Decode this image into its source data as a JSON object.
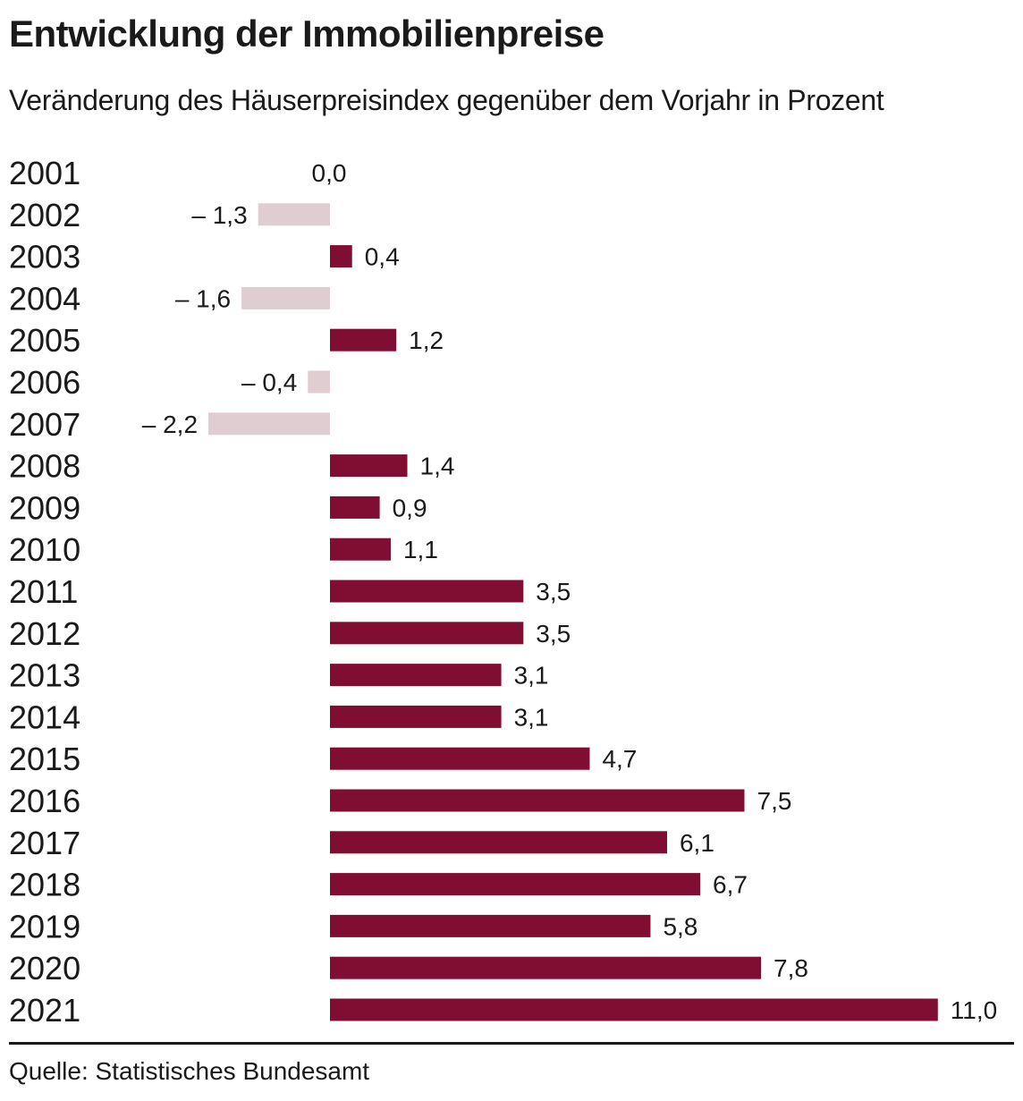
{
  "header": {
    "title": "Entwicklung der Immobilienpreise",
    "subtitle": "Veränderung des Häuserpreisindex gegenüber dem Vorjahr in Prozent"
  },
  "footer": {
    "source": "Quelle: Statistisches Bundesamt"
  },
  "colors": {
    "positive": "#800e33",
    "negative": "#dfcdd2",
    "text": "#1a1a1a"
  },
  "chart_data": {
    "type": "bar",
    "orientation": "horizontal",
    "title": "Entwicklung der Immobilienpreise",
    "subtitle": "Veränderung des Häuserpreisindex gegenüber dem Vorjahr in Prozent",
    "categories": [
      "2001",
      "2002",
      "2003",
      "2004",
      "2005",
      "2006",
      "2007",
      "2008",
      "2009",
      "2010",
      "2011",
      "2012",
      "2013",
      "2014",
      "2015",
      "2016",
      "2017",
      "2018",
      "2019",
      "2020",
      "2021"
    ],
    "values": [
      0.0,
      -1.3,
      0.4,
      -1.6,
      1.2,
      -0.4,
      -2.2,
      1.4,
      0.9,
      1.1,
      3.5,
      3.5,
      3.1,
      3.1,
      4.7,
      7.5,
      6.1,
      6.7,
      5.8,
      7.8,
      11.0
    ],
    "labels": [
      "0,0",
      "– 1,3",
      "0,4",
      "– 1,6",
      "1,2",
      "– 0,4",
      "– 2,2",
      "1,4",
      "0,9",
      "1,1",
      "3,5",
      "3,5",
      "3,1",
      "3,1",
      "4,7",
      "7,5",
      "6,1",
      "6,7",
      "5,8",
      "7,8",
      "11,0"
    ],
    "xlim": [
      -2.2,
      11.0
    ],
    "grid": false,
    "legend": "none"
  }
}
